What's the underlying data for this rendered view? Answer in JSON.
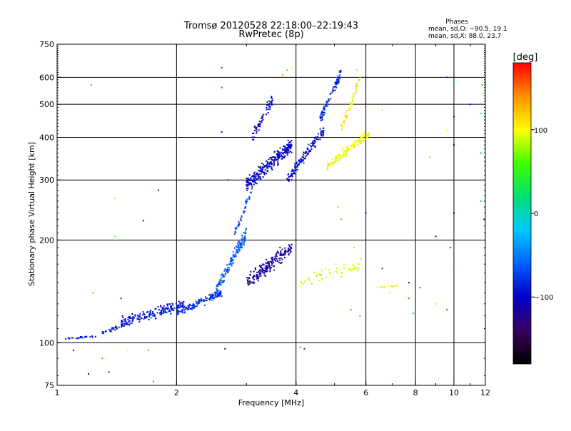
{
  "chart_data": {
    "type": "scatter",
    "title": "Tromsø 20120528 22:18:00–22:19:43",
    "subtitle": "RwPretec (8p)",
    "xlabel": "Frequency [MHz]",
    "ylabel": "Stationary phase Virtual Height [km]",
    "x_scale": "log",
    "y_scale": "log",
    "xlim": [
      1,
      12
    ],
    "ylim": [
      75,
      750
    ],
    "x_ticks": [
      "1",
      "2",
      "4",
      "6",
      "8",
      "10",
      "12"
    ],
    "y_ticks": [
      "75",
      "100",
      "200",
      "300",
      "400",
      "500",
      "600",
      "750"
    ],
    "x_grid": [
      2,
      4,
      6,
      8,
      10
    ],
    "y_grid": [
      100,
      200,
      300,
      400,
      500,
      600
    ],
    "grid": true,
    "phases": {
      "heading": "Phases",
      "line_o": "mean, sd,O: −90.5, 19.1",
      "line_x": "mean, sd,X:  88.0, 23.7"
    },
    "colorbar": {
      "label": "[deg]",
      "range": [
        -180,
        180
      ],
      "ticks": [
        "100",
        "0",
        "−100"
      ],
      "tick_values": [
        100,
        0,
        -100
      ],
      "colors": [
        "#000000",
        "#3a0060",
        "#0000c8",
        "#0060ff",
        "#00c8ff",
        "#00e070",
        "#40ff00",
        "#ffff00",
        "#ff9000",
        "#ff0000"
      ]
    },
    "traces": [
      {
        "x0": 1.05,
        "x1": 1.25,
        "y0": 103,
        "y1": 104,
        "phase": -95,
        "spread": 0.012,
        "count": 25
      },
      {
        "x0": 1.3,
        "x1": 1.55,
        "y0": 107,
        "y1": 115,
        "phase": -90,
        "spread": 0.018,
        "count": 40
      },
      {
        "x0": 1.45,
        "x1": 2.1,
        "y0": 115,
        "y1": 130,
        "phase": -95,
        "spread": 0.05,
        "count": 180
      },
      {
        "x0": 2.0,
        "x1": 2.6,
        "y0": 122,
        "y1": 140,
        "phase": -80,
        "spread": 0.04,
        "count": 140
      },
      {
        "x0": 2.5,
        "x1": 3.0,
        "y0": 140,
        "y1": 210,
        "phase": -65,
        "spread": 0.06,
        "count": 150
      },
      {
        "x0": 2.8,
        "x1": 3.1,
        "y0": 210,
        "y1": 280,
        "phase": -70,
        "spread": 0.04,
        "count": 40
      },
      {
        "x0": 3.0,
        "x1": 3.9,
        "y0": 290,
        "y1": 380,
        "phase": -100,
        "spread": 0.07,
        "count": 280
      },
      {
        "x0": 3.1,
        "x1": 3.5,
        "y0": 400,
        "y1": 520,
        "phase": -100,
        "spread": 0.06,
        "count": 60
      },
      {
        "x0": 3.0,
        "x1": 3.9,
        "y0": 150,
        "y1": 190,
        "phase": -115,
        "spread": 0.07,
        "count": 200
      },
      {
        "x0": 3.8,
        "x1": 4.7,
        "y0": 300,
        "y1": 420,
        "phase": -95,
        "spread": 0.05,
        "count": 140
      },
      {
        "x0": 4.6,
        "x1": 5.2,
        "y0": 450,
        "y1": 620,
        "phase": -85,
        "spread": 0.05,
        "count": 90
      },
      {
        "x0": 4.8,
        "x1": 6.1,
        "y0": 330,
        "y1": 410,
        "phase": 100,
        "spread": 0.04,
        "count": 140
      },
      {
        "x0": 5.2,
        "x1": 5.8,
        "y0": 420,
        "y1": 600,
        "phase": 110,
        "spread": 0.05,
        "count": 50
      },
      {
        "x0": 4.1,
        "x1": 5.9,
        "y0": 150,
        "y1": 170,
        "phase": 90,
        "spread": 0.06,
        "count": 60
      },
      {
        "x0": 6.4,
        "x1": 7.3,
        "y0": 145,
        "y1": 147,
        "phase": 100,
        "spread": 0.01,
        "count": 15
      }
    ],
    "scatter_points": [
      [
        1.22,
        570,
        10
      ],
      [
        1.4,
        265,
        85
      ],
      [
        1.65,
        228,
        -100
      ],
      [
        1.8,
        280,
        -120
      ],
      [
        2.6,
        415,
        -120
      ],
      [
        2.6,
        560,
        -50
      ],
      [
        2.6,
        640,
        -60
      ],
      [
        2.7,
        300,
        -70
      ],
      [
        3.8,
        630,
        40
      ],
      [
        3.7,
        610,
        150
      ],
      [
        3.9,
        640,
        100
      ],
      [
        5.7,
        630,
        120
      ],
      [
        5.8,
        600,
        130
      ],
      [
        6.6,
        480,
        120
      ],
      [
        8.7,
        350,
        130
      ],
      [
        9.6,
        420,
        100
      ],
      [
        9.6,
        600,
        -90
      ],
      [
        10.0,
        585,
        -40
      ],
      [
        10.0,
        460,
        -120
      ],
      [
        10.0,
        380,
        -100
      ],
      [
        10.0,
        240,
        -110
      ],
      [
        11.0,
        500,
        -100
      ],
      [
        11.7,
        470,
        30
      ],
      [
        11.7,
        360,
        20
      ],
      [
        11.7,
        260,
        30
      ],
      [
        11.8,
        570,
        40
      ],
      [
        11.9,
        230,
        -50
      ],
      [
        9.0,
        205,
        -140
      ],
      [
        9.8,
        190,
        -60
      ],
      [
        10.0,
        170,
        155
      ],
      [
        9.6,
        125,
        170
      ],
      [
        9.0,
        130,
        110
      ],
      [
        7.9,
        122,
        -10
      ],
      [
        7.7,
        135,
        160
      ],
      [
        8.2,
        145,
        160
      ],
      [
        1.23,
        140,
        60
      ],
      [
        1.4,
        205,
        60
      ],
      [
        1.45,
        135,
        -80
      ],
      [
        1.1,
        95,
        -100
      ],
      [
        1.3,
        90,
        150
      ],
      [
        1.5,
        95,
        100
      ],
      [
        1.7,
        95,
        150
      ],
      [
        1.75,
        77,
        160
      ],
      [
        1.35,
        82,
        -110
      ],
      [
        1.2,
        81,
        -100
      ],
      [
        2.65,
        96,
        -120
      ],
      [
        4.1,
        97,
        160
      ],
      [
        4.2,
        96,
        -90
      ],
      [
        5.1,
        250,
        130
      ],
      [
        5.2,
        230,
        140
      ],
      [
        6.0,
        240,
        -90
      ],
      [
        5.6,
        190,
        120
      ],
      [
        5.8,
        120,
        150
      ],
      [
        5.5,
        125,
        155
      ],
      [
        6.9,
        140,
        90
      ],
      [
        7.7,
        150,
        -110
      ],
      [
        6.6,
        165,
        -90
      ]
    ]
  }
}
